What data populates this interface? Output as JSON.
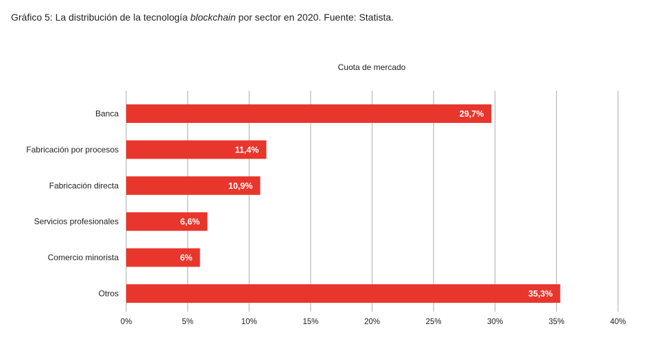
{
  "caption": {
    "prefix": "Gráfico 5: La distribución de la tecnología ",
    "emphasis": "blockchain",
    "suffix": " por sector en 2020. Fuente: Statista."
  },
  "colors": {
    "bar": "#e8362c",
    "grid": "#b9b9b9",
    "text": "#222222",
    "data_label": "#ffffff"
  },
  "chart_data": {
    "type": "bar",
    "orientation": "horizontal",
    "title": "",
    "xlabel": "Cuota de mercado",
    "xlabel_position": "top",
    "ylabel": "",
    "categories": [
      "Banca",
      "Fabricación por procesos",
      "Fabricación directa",
      "Servicios profesionales",
      "Comercio minorista",
      "Otros"
    ],
    "values": [
      29.7,
      11.4,
      10.9,
      6.6,
      6,
      35.3
    ],
    "data_labels": [
      "29,7%",
      "11,4%",
      "10,9%",
      "6,6%",
      "6%",
      "35,3%"
    ],
    "xlim": [
      0,
      40
    ],
    "ticks": [
      0,
      5,
      10,
      15,
      20,
      25,
      30,
      35,
      40
    ],
    "tick_labels": [
      "0%",
      "5%",
      "10%",
      "15%",
      "20%",
      "25%",
      "30%",
      "35%",
      "40%"
    ],
    "grid": "vertical",
    "legend": "none"
  }
}
